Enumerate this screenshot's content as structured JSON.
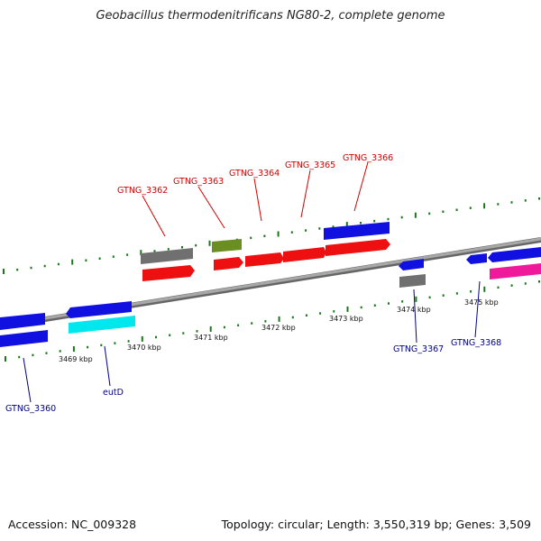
{
  "title": "Geobacillus thermodenitrificans NG80-2, complete genome",
  "footer": {
    "accession": "Accession: NC_009328",
    "summary": "Topology: circular; Length: 3,550,319 bp; Genes: 3,509"
  },
  "colors": {
    "backbone": "#888888",
    "tick": "#1a7a1a",
    "blue": "#1010e0",
    "red": "#ee1010",
    "gray": "#707070",
    "olive": "#6b8e23",
    "cyan": "#00e8ee",
    "pink": "#ee1a9a",
    "label_top": "#d40000",
    "label_bottom": "#00008b"
  },
  "scale": {
    "unit": "kbp",
    "ticks": [
      {
        "kbp": 3469,
        "label": "3469 kbp"
      },
      {
        "kbp": 3470,
        "label": "3470 kbp"
      },
      {
        "kbp": 3471,
        "label": "3471 kbp"
      },
      {
        "kbp": 3472,
        "label": "3472 kbp"
      },
      {
        "kbp": 3473,
        "label": "3473 kbp"
      },
      {
        "kbp": 3474,
        "label": "3474 kbp"
      },
      {
        "kbp": 3475,
        "label": "3475 kbp"
      }
    ]
  },
  "labels": {
    "top": [
      "GTNG_3362",
      "GTNG_3363",
      "GTNG_3364",
      "GTNG_3365",
      "GTNG_3366"
    ],
    "bottom": [
      "GTNG_3360",
      "eutD",
      "GTNG_3367",
      "GTNG_3368"
    ]
  }
}
